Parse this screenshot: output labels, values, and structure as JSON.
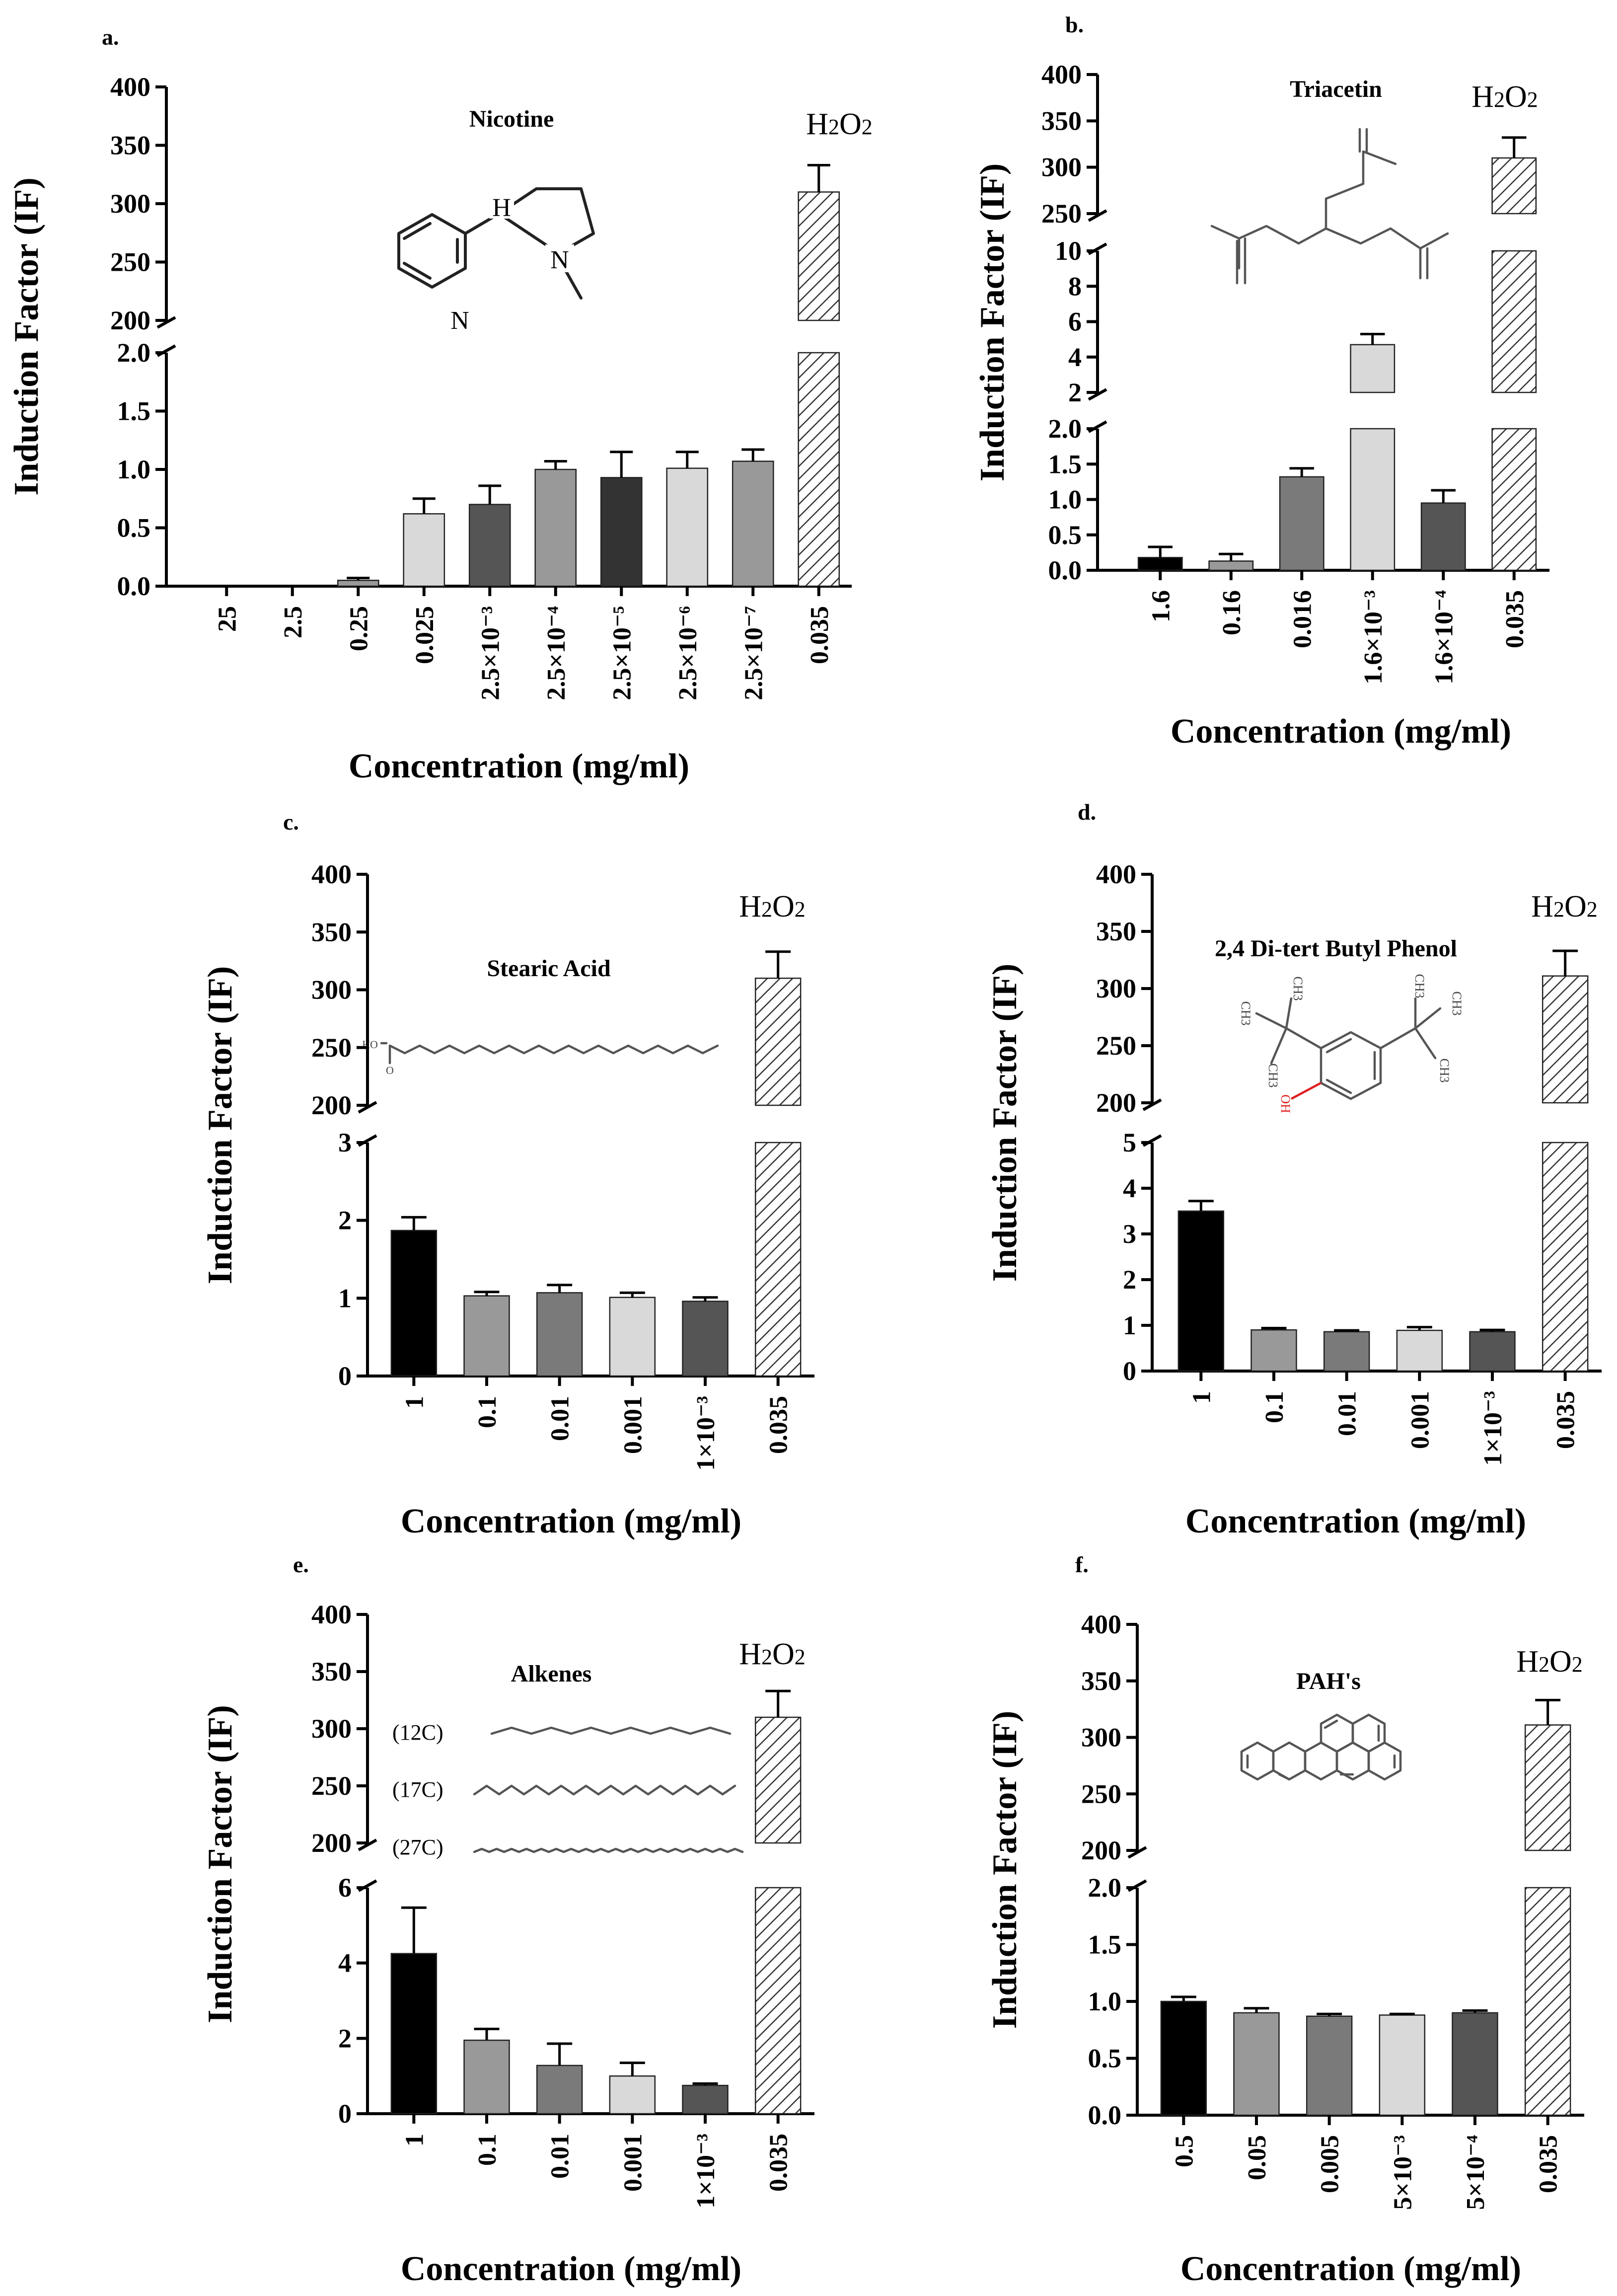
{
  "colors": {
    "black": "#000000",
    "dark": "#333333",
    "darkgray": "#555555",
    "midgray": "#7a7a7a",
    "gray": "#999999",
    "light": "#d9d9d9",
    "hatch": "#333333",
    "hetero": "#e02020"
  },
  "chart_data": [
    {
      "type": "bar",
      "panel": "a.",
      "compound": "Nicotine",
      "control_label": "H2O2",
      "control_label_main": "H",
      "control_label_sub1": "2",
      "control_label_o": "O",
      "control_label_sub2": "2",
      "xlabel": "Concentration (mg/ml)",
      "ylabel": "Induction Factor (IF)",
      "molecule_atoms": [
        "H",
        "N",
        "N"
      ],
      "categories": [
        "25",
        "2.5",
        "0.25",
        "0.025",
        "2.5×10⁻³",
        "2.5×10⁻⁴",
        "2.5×10⁻⁵",
        "2.5×10⁻⁶",
        "2.5×10⁻⁷",
        "0.035"
      ],
      "values": [
        0.0,
        0.0,
        0.05,
        0.62,
        0.7,
        1.0,
        0.93,
        1.01,
        1.07,
        310
      ],
      "errors": [
        0,
        0,
        0.02,
        0.13,
        0.16,
        0.07,
        0.22,
        0.14,
        0.1,
        23
      ],
      "bar_colors": [
        "#000000",
        "#000000",
        "#999999",
        "#d9d9d9",
        "#555555",
        "#999999",
        "#333333",
        "#d9d9d9",
        "#999999",
        "hatch"
      ],
      "y_segments": [
        {
          "range": [
            0,
            2.0
          ],
          "ticks": [
            "0.0",
            "0.5",
            "1.0",
            "1.5",
            "2.0"
          ]
        },
        {
          "range": [
            200,
            400
          ],
          "ticks": [
            "200",
            "250",
            "300",
            "350",
            "400"
          ]
        }
      ]
    },
    {
      "type": "bar",
      "panel": "b.",
      "compound": "Triacetin",
      "control_label": "H2O2",
      "control_label_main": "H",
      "control_label_sub1": "2",
      "control_label_o": "O",
      "control_label_sub2": "2",
      "xlabel": "Concentration (mg/ml)",
      "ylabel": "Induction Factor (IF)",
      "categories": [
        "1.6",
        "0.16",
        "0.016",
        "1.6×10⁻³",
        "1.6×10⁻⁴",
        "0.035"
      ],
      "values": [
        0.18,
        0.13,
        1.32,
        4.7,
        0.95,
        310
      ],
      "errors": [
        0.15,
        0.1,
        0.12,
        0.6,
        0.18,
        22
      ],
      "bar_colors": [
        "#000000",
        "#999999",
        "#7a7a7a",
        "#d9d9d9",
        "#555555",
        "hatch"
      ],
      "y_segments": [
        {
          "range": [
            0,
            2.0
          ],
          "ticks": [
            "0.0",
            "0.5",
            "1.0",
            "1.5",
            "2.0"
          ]
        },
        {
          "range": [
            2,
            10
          ],
          "ticks": [
            "2",
            "4",
            "6",
            "8",
            "10"
          ]
        },
        {
          "range": [
            250,
            400
          ],
          "ticks": [
            "250",
            "300",
            "350",
            "400"
          ]
        }
      ]
    },
    {
      "type": "bar",
      "panel": "c.",
      "compound": "Stearic Acid",
      "control_label": "H2O2",
      "control_label_main": "H",
      "control_label_sub1": "2",
      "control_label_o": "O",
      "control_label_sub2": "2",
      "xlabel": "Concentration (mg/ml)",
      "ylabel": "Induction Factor (IF)",
      "molecule_atoms": [
        "HO",
        "O"
      ],
      "categories": [
        "1",
        "0.1",
        "0.01",
        "0.001",
        "1×10⁻³",
        "0.035"
      ],
      "values": [
        1.87,
        1.03,
        1.07,
        1.01,
        0.96,
        310
      ],
      "errors": [
        0.17,
        0.05,
        0.1,
        0.06,
        0.05,
        23
      ],
      "bar_colors": [
        "#000000",
        "#999999",
        "#7a7a7a",
        "#d9d9d9",
        "#555555",
        "hatch"
      ],
      "y_segments": [
        {
          "range": [
            0,
            3
          ],
          "ticks": [
            "0",
            "1",
            "2",
            "3"
          ]
        },
        {
          "range": [
            200,
            400
          ],
          "ticks": [
            "200",
            "250",
            "300",
            "350",
            "400"
          ]
        }
      ]
    },
    {
      "type": "bar",
      "panel": "d.",
      "compound": "2,4 Di-tert Butyl Phenol",
      "control_label": "H2O2",
      "control_label_main": "H",
      "control_label_sub1": "2",
      "control_label_o": "O",
      "control_label_sub2": "2",
      "xlabel": "Concentration (mg/ml)",
      "ylabel": "Induction Factor (IF)",
      "molecule_atoms": [
        "CH3",
        "CH3",
        "CH3",
        "CH3",
        "CH3",
        "CH3",
        "OH"
      ],
      "categories": [
        "1",
        "0.1",
        "0.01",
        "0.001",
        "1×10⁻³",
        "0.035"
      ],
      "values": [
        3.5,
        0.9,
        0.86,
        0.89,
        0.86,
        311
      ],
      "errors": [
        0.22,
        0.04,
        0.03,
        0.07,
        0.04,
        22
      ],
      "bar_colors": [
        "#000000",
        "#999999",
        "#7a7a7a",
        "#d9d9d9",
        "#555555",
        "hatch"
      ],
      "y_segments": [
        {
          "range": [
            0,
            5
          ],
          "ticks": [
            "0",
            "1",
            "2",
            "3",
            "4",
            "5"
          ]
        },
        {
          "range": [
            200,
            400
          ],
          "ticks": [
            "200",
            "250",
            "300",
            "350",
            "400"
          ]
        }
      ]
    },
    {
      "type": "bar",
      "panel": "e.",
      "compound": "Alkenes",
      "control_label": "H2O2",
      "control_label_main": "H",
      "control_label_sub1": "2",
      "control_label_o": "O",
      "control_label_sub2": "2",
      "xlabel": "Concentration (mg/ml)",
      "ylabel": "Induction Factor (IF)",
      "chain_labels": [
        "(12C)",
        "(17C)",
        "(27C)"
      ],
      "categories": [
        "1",
        "0.1",
        "0.01",
        "0.001",
        "1×10⁻³",
        "0.035"
      ],
      "values": [
        4.25,
        1.95,
        1.28,
        1.0,
        0.75,
        310
      ],
      "errors": [
        1.22,
        0.3,
        0.58,
        0.35,
        0.05,
        23
      ],
      "bar_colors": [
        "#000000",
        "#999999",
        "#7a7a7a",
        "#d9d9d9",
        "#555555",
        "hatch"
      ],
      "y_segments": [
        {
          "range": [
            0,
            6
          ],
          "ticks": [
            "0",
            "2",
            "4",
            "6"
          ]
        },
        {
          "range": [
            200,
            400
          ],
          "ticks": [
            "200",
            "250",
            "300",
            "350",
            "400"
          ]
        }
      ]
    },
    {
      "type": "bar",
      "panel": "f.",
      "compound": "PAH's",
      "control_label": "H2O2",
      "control_label_main": "H",
      "control_label_sub1": "2",
      "control_label_o": "O",
      "control_label_sub2": "2",
      "xlabel": "Concentration (mg/ml)",
      "ylabel": "Induction Factor (IF)",
      "categories": [
        "0.5",
        "0.05",
        "0.005",
        "5×10⁻³",
        "5×10⁻⁴",
        "0.035"
      ],
      "values": [
        1.0,
        0.9,
        0.87,
        0.88,
        0.9,
        311
      ],
      "errors": [
        0.04,
        0.04,
        0.02,
        0.01,
        0.02,
        22
      ],
      "bar_colors": [
        "#000000",
        "#999999",
        "#7a7a7a",
        "#d9d9d9",
        "#555555",
        "hatch"
      ],
      "y_segments": [
        {
          "range": [
            0,
            2.0
          ],
          "ticks": [
            "0.0",
            "0.5",
            "1.0",
            "1.5",
            "2.0"
          ]
        },
        {
          "range": [
            200,
            400
          ],
          "ticks": [
            "200",
            "250",
            "300",
            "350",
            "400"
          ]
        }
      ]
    }
  ]
}
